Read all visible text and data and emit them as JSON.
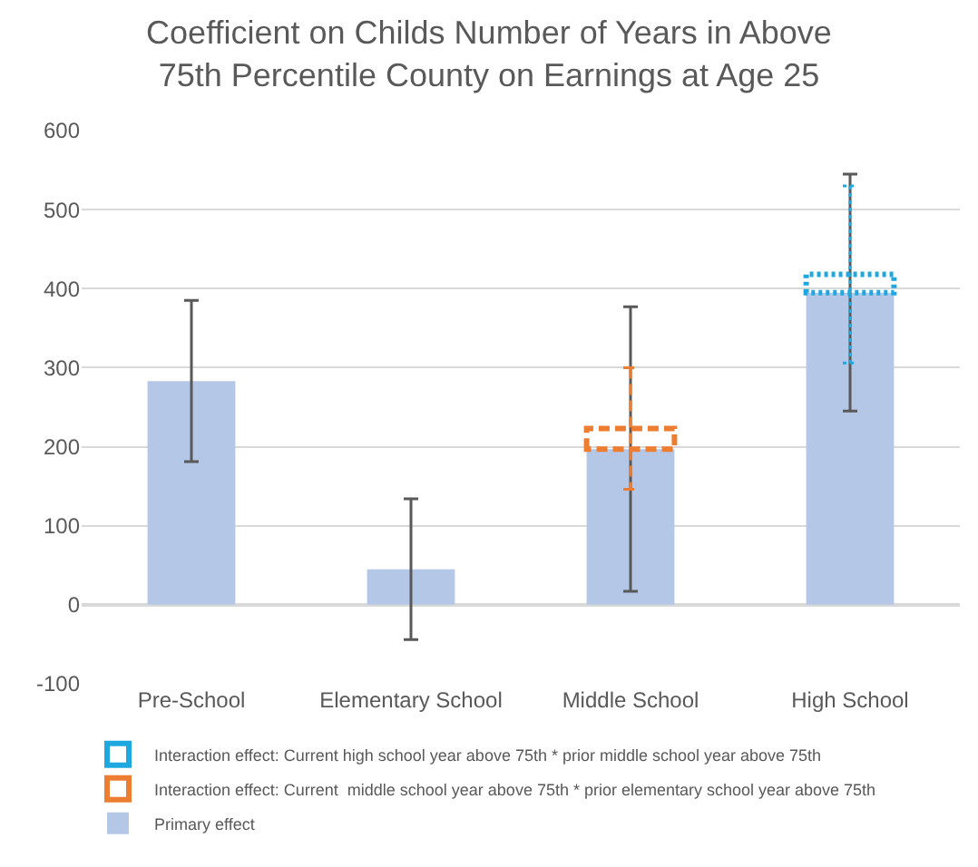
{
  "chart_data": {
    "type": "bar",
    "title": "Coefficient on Childs Number of Years in Above\n75th Percentile County on Earnings at Age 25",
    "categories": [
      "Pre-School",
      "Elementary School",
      "Middle School",
      "High School"
    ],
    "stacked": true,
    "series": [
      {
        "name": "Primary effect",
        "color": "#b4c7e7",
        "values": [
          283,
          45,
          197,
          395
        ],
        "errors": [
          102,
          89,
          180,
          150
        ]
      },
      {
        "name": "Interaction effect: Current  middle school year above 75th * prior elementary school year above 75th",
        "color": "#ed7d31",
        "values": [
          null,
          null,
          26,
          null
        ],
        "errors": [
          null,
          null,
          77,
          null
        ],
        "line_style": "dashed"
      },
      {
        "name": "Interaction effect: Current high school year above 75th * prior middle school year above 75th",
        "color": "#1fa8e0",
        "values": [
          null,
          null,
          null,
          23
        ],
        "errors": [
          null,
          null,
          null,
          112
        ],
        "line_style": "dotted"
      }
    ],
    "ylim": [
      -100,
      600
    ],
    "yticks": [
      -100,
      0,
      100,
      200,
      300,
      400,
      500,
      600
    ],
    "grid": "y",
    "legend": "bottom"
  }
}
